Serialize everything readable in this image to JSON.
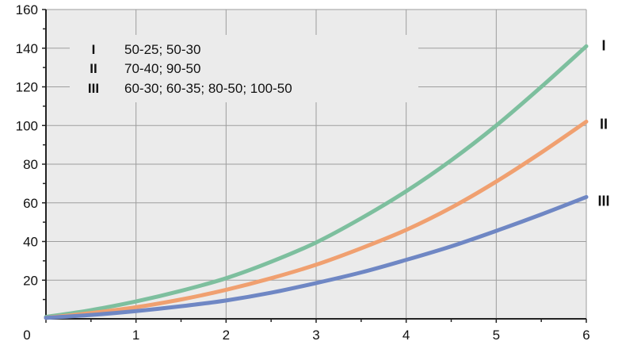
{
  "chart_data": {
    "type": "line",
    "title": "",
    "xlabel": "",
    "ylabel": "",
    "xlim": [
      0,
      6
    ],
    "ylim": [
      0,
      160
    ],
    "x_ticks": [
      "0",
      "1",
      "2",
      "3",
      "4",
      "5",
      "6"
    ],
    "y_ticks": [
      "20",
      "40",
      "60",
      "80",
      "100",
      "120",
      "140",
      "160"
    ],
    "grid": true,
    "legend": {
      "placement": "top-left",
      "entries": [
        {
          "key": "I",
          "text": "50-25; 50-30"
        },
        {
          "key": "II",
          "text": "70-40; 90-50"
        },
        {
          "key": "III",
          "text": "60-30; 60-35; 80-50; 100-50"
        }
      ]
    },
    "series": [
      {
        "name": "I",
        "color": "#7dbf9e",
        "x": [
          0,
          0.5,
          1,
          1.5,
          2,
          2.5,
          3,
          3.5,
          4,
          4.5,
          5,
          5.5,
          6
        ],
        "y": [
          1,
          4.5,
          9,
          14.5,
          21,
          29.5,
          39.5,
          52,
          66,
          82,
          100,
          120,
          141
        ]
      },
      {
        "name": "II",
        "color": "#f0a070",
        "x": [
          0,
          0.5,
          1,
          1.5,
          2,
          2.5,
          3,
          3.5,
          4,
          4.5,
          5,
          5.5,
          6
        ],
        "y": [
          0.5,
          3,
          6,
          10,
          15,
          21,
          28,
          36.5,
          46,
          57.5,
          71,
          86,
          102
        ]
      },
      {
        "name": "III",
        "color": "#6f87c4",
        "x": [
          0,
          0.5,
          1,
          1.5,
          2,
          2.5,
          3,
          3.5,
          4,
          4.5,
          5,
          5.5,
          6
        ],
        "y": [
          0.5,
          2,
          4,
          6.5,
          9.5,
          13.5,
          18.5,
          24,
          30.5,
          37.5,
          45.5,
          54,
          63
        ]
      }
    ]
  }
}
